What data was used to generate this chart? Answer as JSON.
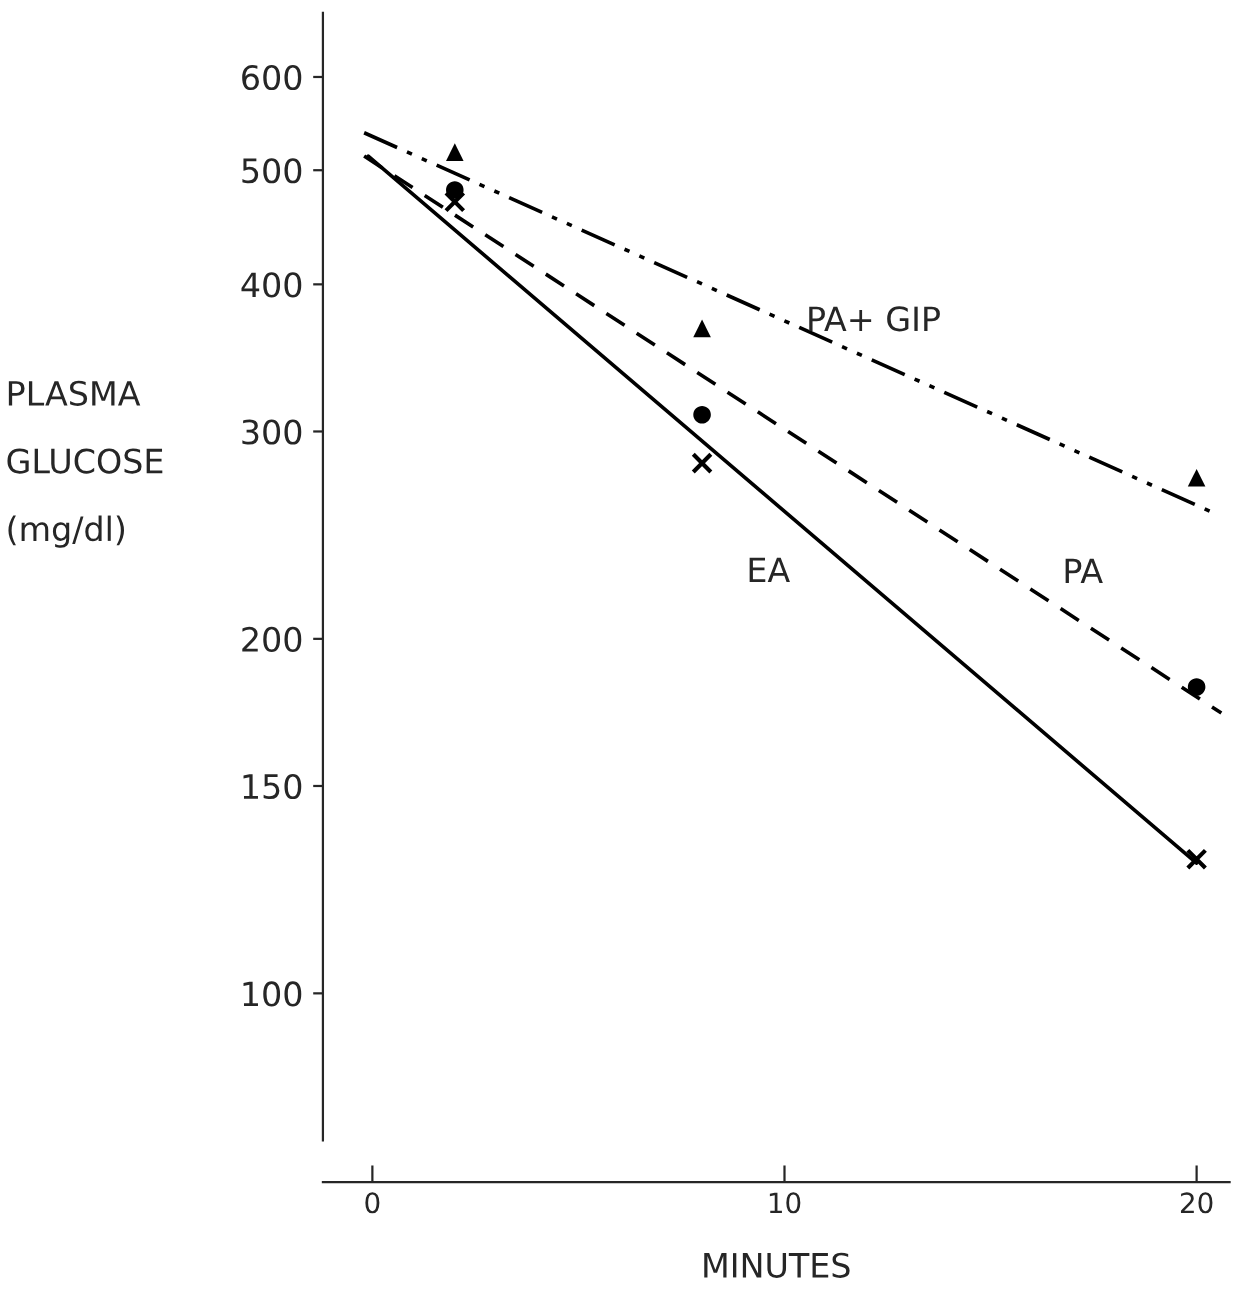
{
  "chart_data": {
    "type": "scatter",
    "ylabel": "PLASMA\nGLUCOSE\n(mg/dl)",
    "xlabel": "MINUTES",
    "log": "y",
    "xlim": [
      -1.2,
      20.8
    ],
    "ylim": [
      75,
      680
    ],
    "xticks": [
      0,
      10,
      20
    ],
    "yticks": [
      100,
      150,
      200,
      300,
      400,
      500,
      600
    ],
    "grid": false,
    "legend": false,
    "series": [
      {
        "marker": "triangle",
        "color": "#000000",
        "x": [
          2,
          8,
          20
        ],
        "values": [
          518,
          367,
          274
        ]
      },
      {
        "marker": "circle",
        "color": "#000000",
        "x": [
          2,
          8,
          20
        ],
        "values": [
          481,
          310,
          182
        ]
      },
      {
        "marker": "cross",
        "color": "#000000",
        "x": [
          2,
          8,
          20
        ],
        "values": [
          470,
          282,
          130
        ]
      },
      {
        "type": "line",
        "name": "PA+ GIP",
        "line_style": "dashdot",
        "color": "#000000",
        "x": [
          -0.2,
          20.4
        ],
        "values": [
          538,
          256
        ]
      },
      {
        "type": "line",
        "name": "PA",
        "line_style": "dashed",
        "color": "#000000",
        "x": [
          -0.2,
          20.6
        ],
        "values": [
          514,
          173
        ]
      },
      {
        "type": "line",
        "name": "EA",
        "line_style": "solid",
        "color": "#000000",
        "x": [
          -0.1,
          20
        ],
        "values": [
          514,
          129
        ]
      }
    ]
  }
}
